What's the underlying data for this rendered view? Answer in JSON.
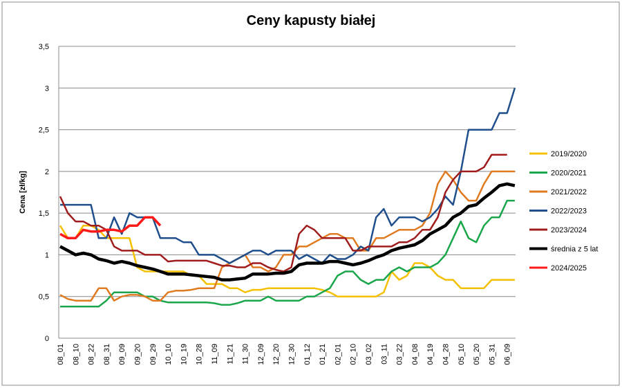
{
  "chart_data": {
    "type": "line",
    "title": "Ceny kapusty białej",
    "y_label": "Cena [zł/kg]",
    "categories": [
      "08_01",
      null,
      "08_10",
      null,
      "08_22",
      null,
      "08_31",
      null,
      "09_09",
      null,
      "09_20",
      null,
      "09_29",
      null,
      "10_10",
      null,
      "10_19",
      null,
      "10_28",
      null,
      "11_09",
      null,
      "11_21",
      null,
      "11_30",
      null,
      "12_09",
      null,
      "12_20",
      null,
      "12_30",
      null,
      "01_12",
      null,
      "01_21",
      null,
      "02_01",
      null,
      "02_10",
      null,
      "03_02",
      null,
      "03_11",
      null,
      "03_22",
      null,
      "04_08",
      null,
      "04_19",
      null,
      "04_28",
      null,
      "05_10",
      null,
      "05_20",
      null,
      "05_31",
      null,
      "06_09",
      null
    ],
    "ylim": [
      0,
      3.5
    ],
    "yticks": [
      0,
      {
        "value": 0.5,
        "label": "0,5"
      },
      1,
      {
        "value": 1.5,
        "label": "1,5"
      },
      2,
      {
        "value": 2.5,
        "label": "2,5"
      },
      3,
      {
        "value": 3.5,
        "label": "3,5"
      }
    ],
    "grid": true,
    "legend": "right",
    "series": [
      {
        "name": "2019/2020",
        "color": "#f5c000",
        "values": [
          1.35,
          1.2,
          1.2,
          1.35,
          1.35,
          1.3,
          1.2,
          1.2,
          1.2,
          1.2,
          0.85,
          0.8,
          0.8,
          0.8,
          0.8,
          0.8,
          0.8,
          0.75,
          0.75,
          0.65,
          0.65,
          0.65,
          0.6,
          0.6,
          0.55,
          0.58,
          0.58,
          0.6,
          0.6,
          0.6,
          0.6,
          0.6,
          0.6,
          0.6,
          0.58,
          0.55,
          0.5,
          0.5,
          0.5,
          0.5,
          0.5,
          0.5,
          0.55,
          0.8,
          0.7,
          0.75,
          0.9,
          0.9,
          0.85,
          0.75,
          0.7,
          0.7,
          0.6,
          0.6,
          0.6,
          0.6,
          0.7,
          0.7,
          0.7,
          0.7
        ]
      },
      {
        "name": "2020/2021",
        "color": "#1aa64a",
        "values": [
          0.38,
          0.38,
          0.38,
          0.38,
          0.38,
          0.38,
          0.45,
          0.55,
          0.55,
          0.55,
          0.55,
          0.5,
          0.5,
          0.45,
          0.43,
          0.43,
          0.43,
          0.43,
          0.43,
          0.43,
          0.42,
          0.4,
          0.4,
          0.42,
          0.45,
          0.45,
          0.45,
          0.5,
          0.45,
          0.45,
          0.45,
          0.45,
          0.5,
          0.5,
          0.55,
          0.6,
          0.75,
          0.8,
          0.8,
          0.7,
          0.65,
          0.7,
          0.7,
          0.8,
          0.85,
          0.8,
          0.85,
          0.85,
          0.85,
          0.9,
          1.0,
          1.2,
          1.4,
          1.2,
          1.15,
          1.35,
          1.45,
          1.45,
          1.65,
          1.65
        ]
      },
      {
        "name": "2021/2022",
        "color": "#e07a1f",
        "values": [
          0.52,
          0.47,
          0.45,
          0.45,
          0.45,
          0.6,
          0.6,
          0.45,
          0.5,
          0.52,
          0.52,
          0.5,
          0.45,
          0.45,
          0.55,
          0.57,
          0.57,
          0.58,
          0.6,
          0.6,
          0.6,
          0.85,
          0.9,
          0.95,
          1.0,
          0.85,
          0.85,
          0.8,
          0.85,
          1.0,
          1.0,
          1.1,
          1.1,
          1.15,
          1.2,
          1.25,
          1.25,
          1.2,
          1.2,
          1.05,
          1.05,
          1.2,
          1.2,
          1.25,
          1.3,
          1.3,
          1.3,
          1.35,
          1.5,
          1.85,
          2.0,
          1.9,
          1.75,
          1.65,
          1.65,
          1.85,
          2.0,
          2.0,
          2.0,
          2.0
        ]
      },
      {
        "name": "2022/2023",
        "color": "#1f4e8c",
        "values": [
          1.6,
          1.6,
          1.6,
          1.6,
          1.6,
          1.2,
          1.2,
          1.45,
          1.25,
          1.5,
          1.45,
          1.45,
          1.45,
          1.2,
          1.2,
          1.2,
          1.15,
          1.15,
          1.0,
          1.0,
          1.0,
          0.95,
          0.9,
          0.95,
          1.0,
          1.05,
          1.05,
          1.0,
          1.05,
          1.05,
          1.05,
          0.95,
          1.0,
          0.95,
          0.9,
          1.0,
          0.95,
          0.95,
          1.0,
          1.1,
          1.05,
          1.45,
          1.55,
          1.35,
          1.45,
          1.45,
          1.45,
          1.4,
          1.45,
          1.55,
          1.7,
          1.6,
          2.0,
          2.5,
          2.5,
          2.5,
          2.5,
          2.7,
          2.7,
          3.0
        ]
      },
      {
        "name": "2023/2024",
        "color": "#a01c1c",
        "values": [
          1.7,
          1.5,
          1.4,
          1.4,
          1.35,
          1.35,
          1.3,
          1.1,
          1.05,
          1.05,
          1.05,
          1.0,
          1.0,
          1.0,
          0.92,
          0.93,
          0.93,
          0.93,
          0.93,
          0.93,
          0.9,
          0.87,
          0.87,
          0.85,
          0.85,
          0.9,
          0.9,
          0.85,
          0.82,
          0.8,
          0.85,
          1.25,
          1.35,
          1.3,
          1.2,
          1.2,
          1.2,
          1.2,
          1.05,
          1.05,
          1.1,
          1.1,
          1.1,
          1.1,
          1.15,
          1.15,
          1.2,
          1.3,
          1.3,
          1.45,
          1.75,
          1.9,
          2.0,
          2.0,
          2.0,
          2.05,
          2.2,
          2.2,
          2.2,
          null
        ]
      },
      {
        "name": "średnia z 5 lat",
        "color": "#000000",
        "values": [
          1.1,
          1.05,
          1.0,
          1.02,
          1.0,
          0.95,
          0.93,
          0.9,
          0.92,
          0.9,
          0.87,
          0.85,
          0.83,
          0.8,
          0.77,
          0.77,
          0.77,
          0.76,
          0.75,
          0.74,
          0.73,
          0.7,
          0.7,
          0.71,
          0.72,
          0.77,
          0.77,
          0.77,
          0.78,
          0.78,
          0.8,
          0.88,
          0.9,
          0.9,
          0.9,
          0.92,
          0.92,
          0.9,
          0.88,
          0.9,
          0.93,
          0.97,
          1.0,
          1.05,
          1.08,
          1.1,
          1.12,
          1.17,
          1.25,
          1.3,
          1.35,
          1.45,
          1.5,
          1.58,
          1.6,
          1.68,
          1.75,
          1.83,
          1.85,
          1.83
        ]
      },
      {
        "name": "2024/2025",
        "color": "#ff1a1a",
        "values": [
          1.25,
          1.2,
          1.2,
          1.3,
          1.28,
          1.28,
          1.3,
          1.3,
          1.28,
          1.35,
          1.35,
          1.45,
          1.45,
          1.35,
          null,
          null,
          null,
          null,
          null,
          null,
          null,
          null,
          null,
          null,
          null,
          null,
          null,
          null,
          null,
          null,
          null,
          null,
          null,
          null,
          null,
          null,
          null,
          null,
          null,
          null,
          null,
          null,
          null,
          null,
          null,
          null,
          null,
          null,
          null,
          null,
          null,
          null,
          null,
          null,
          null,
          null,
          null,
          null,
          null,
          null
        ]
      }
    ]
  }
}
